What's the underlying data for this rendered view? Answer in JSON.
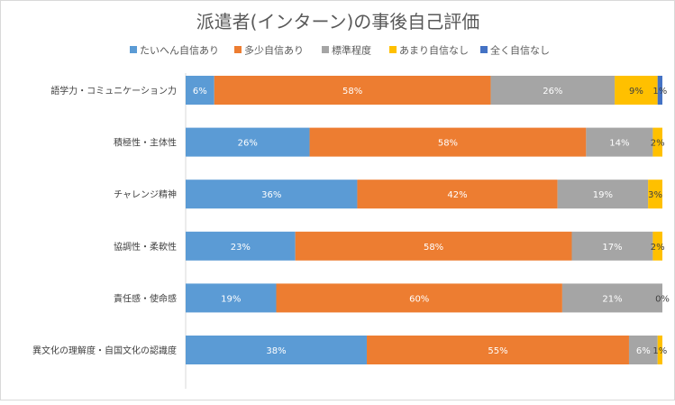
{
  "chart_data": {
    "type": "bar",
    "orientation": "horizontal",
    "stacked": true,
    "percent": true,
    "title": "派遣者(インターン)の事後自己評価",
    "legend_position": "top",
    "categories": [
      "語学力・コミュニケーション力",
      "積極性・主体性",
      "チャレンジ精神",
      "協調性・柔軟性",
      "責任感・使命感",
      "異文化の理解度・自国文化の認識度"
    ],
    "series": [
      {
        "name": "たいへん自信あり",
        "color": "#5b9bd5",
        "values": [
          6,
          26,
          36,
          23,
          19,
          38
        ],
        "labels": [
          "6%",
          "26%",
          "36%",
          "23%",
          "19%",
          "38%"
        ]
      },
      {
        "name": "多少自信あり",
        "color": "#ed7d31",
        "values": [
          58,
          58,
          42,
          58,
          60,
          55
        ],
        "labels": [
          "58%",
          "58%",
          "42%",
          "58%",
          "60%",
          "55%"
        ]
      },
      {
        "name": "標準程度",
        "color": "#a5a5a5",
        "values": [
          26,
          14,
          19,
          17,
          21,
          6
        ],
        "labels": [
          "26%",
          "14%",
          "19%",
          "17%",
          "21%",
          "6%"
        ]
      },
      {
        "name": "あまり自信なし",
        "color": "#ffc000",
        "values": [
          9,
          2,
          3,
          2,
          0,
          1
        ],
        "labels": [
          "9%",
          "2%",
          "3%",
          "2%",
          "0%",
          "1%"
        ]
      },
      {
        "name": "全く自信なし",
        "color": "#4472c4",
        "values": [
          1,
          0,
          0,
          0,
          0,
          0
        ],
        "labels": [
          "1%",
          "",
          "",
          "",
          "",
          ""
        ]
      }
    ],
    "xlim": [
      0,
      100
    ],
    "grid": false
  }
}
